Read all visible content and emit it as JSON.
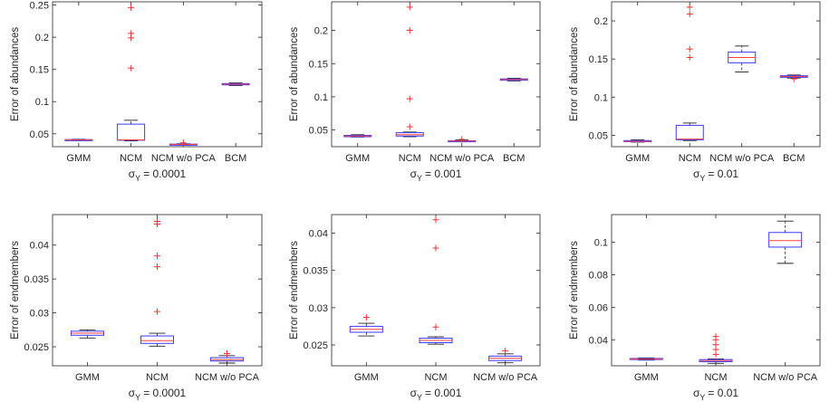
{
  "chart_data": [
    {
      "type": "boxplot",
      "ylabel": "Error of abundances",
      "xlabel_prefix": "σ",
      "xlabel_sub": "Y",
      "xlabel_value": "= 0.0001",
      "ylim": [
        0.03,
        0.255
      ],
      "yticks": [
        0.05,
        0.1,
        0.15,
        0.2,
        0.25
      ],
      "ytick_labels": [
        "0.05",
        "0.1",
        "0.15",
        "0.2",
        "0.25"
      ],
      "categories": [
        "GMM",
        "NCM",
        "NCM w/o PCA",
        "BCM"
      ],
      "boxes": [
        {
          "whisker_low": 0.0395,
          "q1": 0.04,
          "median": 0.0405,
          "q3": 0.041,
          "whisker_high": 0.0415,
          "outliers": []
        },
        {
          "whisker_low": 0.039,
          "q1": 0.04,
          "median": 0.0405,
          "q3": 0.065,
          "whisker_high": 0.071,
          "outliers": [
            0.152,
            0.199,
            0.206,
            0.246
          ]
        },
        {
          "whisker_low": 0.0325,
          "q1": 0.033,
          "median": 0.0335,
          "q3": 0.034,
          "whisker_high": 0.0345,
          "outliers": [
            0.036
          ]
        },
        {
          "whisker_low": 0.125,
          "q1": 0.126,
          "median": 0.127,
          "q3": 0.128,
          "whisker_high": 0.129,
          "outliers": []
        }
      ]
    },
    {
      "type": "boxplot",
      "ylabel": "Error of abundances",
      "xlabel_prefix": "σ",
      "xlabel_sub": "Y",
      "xlabel_value": "= 0.001",
      "ylim": [
        0.025,
        0.243
      ],
      "yticks": [
        0.05,
        0.1,
        0.15,
        0.2
      ],
      "ytick_labels": [
        "0.05",
        "0.1",
        "0.15",
        "0.2"
      ],
      "categories": [
        "GMM",
        "NCM",
        "NCM w/o PCA",
        "BCM"
      ],
      "boxes": [
        {
          "whisker_low": 0.0395,
          "q1": 0.04,
          "median": 0.041,
          "q3": 0.042,
          "whisker_high": 0.043,
          "outliers": []
        },
        {
          "whisker_low": 0.04,
          "q1": 0.041,
          "median": 0.043,
          "q3": 0.046,
          "whisker_high": 0.047,
          "outliers": [
            0.055,
            0.097,
            0.2,
            0.235
          ]
        },
        {
          "whisker_low": 0.0325,
          "q1": 0.033,
          "median": 0.0335,
          "q3": 0.034,
          "whisker_high": 0.035,
          "outliers": [
            0.036
          ]
        },
        {
          "whisker_low": 0.124,
          "q1": 0.125,
          "median": 0.126,
          "q3": 0.127,
          "whisker_high": 0.128,
          "outliers": []
        }
      ]
    },
    {
      "type": "boxplot",
      "ylabel": "Error of abundances",
      "xlabel_prefix": "σ",
      "xlabel_sub": "Y",
      "xlabel_value": "= 0.01",
      "ylim": [
        0.035,
        0.225
      ],
      "yticks": [
        0.05,
        0.1,
        0.15,
        0.2
      ],
      "ytick_labels": [
        "0.05",
        "0.1",
        "0.15",
        "0.2"
      ],
      "categories": [
        "GMM",
        "NCM",
        "NCM w/o PCA",
        "BCM"
      ],
      "boxes": [
        {
          "whisker_low": 0.041,
          "q1": 0.0415,
          "median": 0.042,
          "q3": 0.043,
          "whisker_high": 0.044,
          "outliers": []
        },
        {
          "whisker_low": 0.043,
          "q1": 0.044,
          "median": 0.045,
          "q3": 0.063,
          "whisker_high": 0.066,
          "outliers": [
            0.152,
            0.163,
            0.209,
            0.218
          ]
        },
        {
          "whisker_low": 0.133,
          "q1": 0.145,
          "median": 0.152,
          "q3": 0.159,
          "whisker_high": 0.167,
          "outliers": []
        },
        {
          "whisker_low": 0.125,
          "q1": 0.126,
          "median": 0.127,
          "q3": 0.128,
          "whisker_high": 0.129,
          "outliers": [
            0.124
          ]
        }
      ]
    },
    {
      "type": "boxplot",
      "ylabel": "Error of endmembers",
      "xlabel_prefix": "σ",
      "xlabel_sub": "Y",
      "xlabel_value": "= 0.0001",
      "ylim": [
        0.0222,
        0.0445
      ],
      "yticks": [
        0.025,
        0.03,
        0.035,
        0.04
      ],
      "ytick_labels": [
        "0.025",
        "0.03",
        "0.035",
        "0.04"
      ],
      "categories": [
        "GMM",
        "NCM",
        "NCM w/o PCA"
      ],
      "boxes": [
        {
          "whisker_low": 0.0263,
          "q1": 0.0267,
          "median": 0.027,
          "q3": 0.0273,
          "whisker_high": 0.0275,
          "outliers": []
        },
        {
          "whisker_low": 0.0251,
          "q1": 0.0255,
          "median": 0.0259,
          "q3": 0.0266,
          "whisker_high": 0.027,
          "outliers": [
            0.0302,
            0.0368,
            0.0384,
            0.0431,
            0.0435
          ]
        },
        {
          "whisker_low": 0.0226,
          "q1": 0.0229,
          "median": 0.0231,
          "q3": 0.0234,
          "whisker_high": 0.0237,
          "outliers": [
            0.024
          ]
        }
      ]
    },
    {
      "type": "boxplot",
      "ylabel": "Error of endmembers",
      "xlabel_prefix": "σ",
      "xlabel_sub": "Y",
      "xlabel_value": "= 0.001",
      "ylim": [
        0.0222,
        0.0425
      ],
      "yticks": [
        0.025,
        0.03,
        0.035,
        0.04
      ],
      "ytick_labels": [
        "0.025",
        "0.03",
        "0.035",
        "0.04"
      ],
      "categories": [
        "GMM",
        "NCM",
        "NCM w/o PCA"
      ],
      "boxes": [
        {
          "whisker_low": 0.0262,
          "q1": 0.0267,
          "median": 0.0271,
          "q3": 0.0275,
          "whisker_high": 0.0279,
          "outliers": [
            0.0287
          ]
        },
        {
          "whisker_low": 0.0251,
          "q1": 0.0253,
          "median": 0.0256,
          "q3": 0.0259,
          "whisker_high": 0.0261,
          "outliers": [
            0.0274,
            0.038,
            0.0418
          ]
        },
        {
          "whisker_low": 0.0226,
          "q1": 0.0229,
          "median": 0.0232,
          "q3": 0.0235,
          "whisker_high": 0.0238,
          "outliers": [
            0.0242
          ]
        }
      ]
    },
    {
      "type": "boxplot",
      "ylabel": "Error of endmembers",
      "xlabel_prefix": "σ",
      "xlabel_sub": "Y",
      "xlabel_value": "= 0.01",
      "ylim": [
        0.024,
        0.117
      ],
      "yticks": [
        0.04,
        0.06,
        0.08,
        0.1
      ],
      "ytick_labels": [
        "0.04",
        "0.06",
        "0.08",
        "0.1"
      ],
      "categories": [
        "GMM",
        "NCM",
        "NCM w/o PCA"
      ],
      "boxes": [
        {
          "whisker_low": 0.0275,
          "q1": 0.0279,
          "median": 0.0282,
          "q3": 0.0285,
          "whisker_high": 0.0288,
          "outliers": []
        },
        {
          "whisker_low": 0.0255,
          "q1": 0.0265,
          "median": 0.0272,
          "q3": 0.0278,
          "whisker_high": 0.0282,
          "outliers": [
            0.031,
            0.034,
            0.037,
            0.04,
            0.042
          ]
        },
        {
          "whisker_low": 0.087,
          "q1": 0.097,
          "median": 0.101,
          "q3": 0.106,
          "whisker_high": 0.113,
          "outliers": []
        }
      ]
    }
  ],
  "colors": {
    "box": "#3a3aff",
    "median": "#ff4040",
    "whisker": "#222222",
    "outlier": "#ff3030",
    "axis": "#262626"
  }
}
